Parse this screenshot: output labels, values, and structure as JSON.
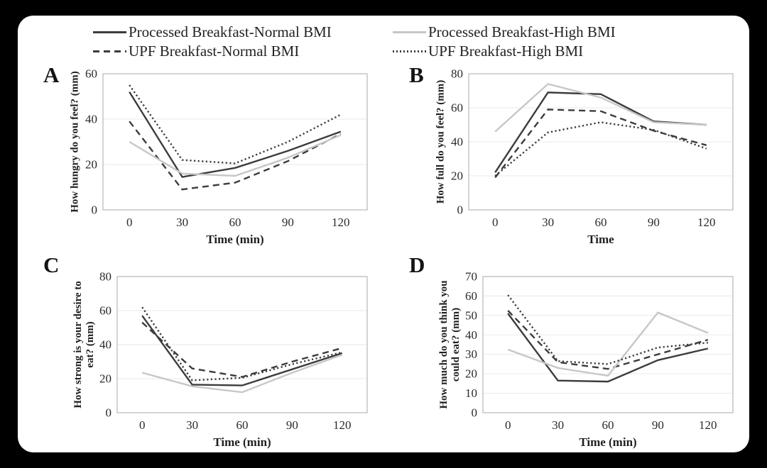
{
  "colors": {
    "page_background": "#000000",
    "card_background": "#ffffff",
    "dark_line": "#3c3c3c",
    "gray_line": "#c7c7c7",
    "gridline": "#e9e9e9",
    "axis": "#b8b8b8",
    "text": "#1f1f1f"
  },
  "legend": {
    "position": "top",
    "items": [
      {
        "label": "Processed Breakfast-Normal BMI",
        "style": "solid-dark"
      },
      {
        "label": "UPF Breakfast-Normal BMI",
        "style": "dashed-dark"
      },
      {
        "label": "Processed Breakfast-High BMI",
        "style": "solid-gray"
      },
      {
        "label": "UPF Breakfast-High BMI",
        "style": "dotted-dark"
      }
    ]
  },
  "chart_data": [
    {
      "type": "line",
      "panel": "A",
      "ylabel": "How hungry do you feel? (mm)",
      "xlabel": "Time (min)",
      "x": [
        0,
        30,
        60,
        90,
        120
      ],
      "ylim": [
        0,
        60
      ],
      "yticks": [
        0,
        20,
        40,
        60
      ],
      "grid": true,
      "series": [
        {
          "name": "Processed Breakfast-Normal BMI",
          "style": "solid-dark",
          "values": [
            52,
            14.5,
            18.5,
            26,
            34.5
          ]
        },
        {
          "name": "UPF Breakfast-Normal BMI",
          "style": "dashed-dark",
          "values": [
            39,
            9,
            12,
            21.5,
            33.5
          ]
        },
        {
          "name": "Processed Breakfast-High BMI",
          "style": "solid-gray",
          "values": [
            30,
            16,
            15,
            23,
            33
          ]
        },
        {
          "name": "UPF Breakfast-High BMI",
          "style": "dotted-dark",
          "values": [
            55,
            22,
            20.5,
            30,
            42
          ]
        }
      ]
    },
    {
      "type": "line",
      "panel": "B",
      "ylabel": "How full do you feel? (mm)",
      "xlabel": "Time",
      "x": [
        0,
        30,
        60,
        90,
        120
      ],
      "ylim": [
        0,
        80
      ],
      "yticks": [
        0,
        20,
        40,
        60,
        80
      ],
      "grid": true,
      "series": [
        {
          "name": "Processed Breakfast-Normal BMI",
          "style": "solid-dark",
          "values": [
            22,
            69,
            68,
            52,
            50
          ]
        },
        {
          "name": "UPF Breakfast-Normal BMI",
          "style": "dashed-dark",
          "values": [
            19,
            59,
            58,
            46.5,
            38
          ]
        },
        {
          "name": "Processed Breakfast-High BMI",
          "style": "solid-gray",
          "values": [
            46,
            74,
            66,
            51.5,
            50
          ]
        },
        {
          "name": "UPF Breakfast-High BMI",
          "style": "dotted-dark",
          "values": [
            20,
            45.5,
            51.5,
            47,
            36
          ]
        }
      ]
    },
    {
      "type": "line",
      "panel": "C",
      "ylabel": "How strong is your desire to\neat? (mm)",
      "xlabel": "Time (min)",
      "x": [
        0,
        30,
        60,
        90,
        120
      ],
      "ylim": [
        0,
        80
      ],
      "yticks": [
        0,
        20,
        40,
        60,
        80
      ],
      "grid": true,
      "series": [
        {
          "name": "Processed Breakfast-Normal BMI",
          "style": "solid-dark",
          "values": [
            57,
            16.5,
            16,
            25.5,
            35
          ]
        },
        {
          "name": "UPF Breakfast-Normal BMI",
          "style": "dashed-dark",
          "values": [
            53,
            26,
            21,
            30,
            38
          ]
        },
        {
          "name": "Processed Breakfast-High BMI",
          "style": "solid-gray",
          "values": [
            23.5,
            15.5,
            12,
            23.5,
            34
          ]
        },
        {
          "name": "UPF Breakfast-High BMI",
          "style": "dotted-dark",
          "values": [
            62,
            19,
            20.5,
            28.5,
            35.5
          ]
        }
      ]
    },
    {
      "type": "line",
      "panel": "D",
      "ylabel": "How much do you think you\ncould eat? (mm)",
      "xlabel": "Time (min)",
      "x": [
        0,
        30,
        60,
        90,
        120
      ],
      "ylim": [
        0,
        70
      ],
      "yticks": [
        0,
        10,
        20,
        30,
        40,
        50,
        60,
        70
      ],
      "grid": true,
      "series": [
        {
          "name": "Processed Breakfast-Normal BMI",
          "style": "solid-dark",
          "values": [
            51,
            16.5,
            16,
            27,
            33
          ]
        },
        {
          "name": "UPF Breakfast-Normal BMI",
          "style": "dashed-dark",
          "values": [
            52.5,
            26,
            22.5,
            30,
            37.5
          ]
        },
        {
          "name": "Processed Breakfast-High BMI",
          "style": "solid-gray",
          "values": [
            32.5,
            23,
            19,
            51.5,
            41
          ]
        },
        {
          "name": "UPF Breakfast-High BMI",
          "style": "dotted-dark",
          "values": [
            60.5,
            26.5,
            25,
            33.5,
            36
          ]
        }
      ]
    }
  ]
}
